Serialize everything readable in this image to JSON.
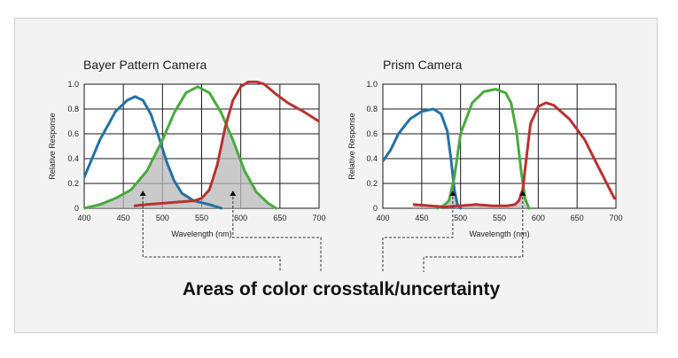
{
  "caption": "Areas of color crosstalk/uncertainty",
  "colors": {
    "blue": "#2471a3",
    "green": "#4aaa3e",
    "red": "#b83232",
    "shade": "#b8b8b8"
  },
  "chart_data": [
    {
      "type": "line",
      "title": "Bayer Pattern Camera",
      "xlabel": "Wavelength (nm)",
      "ylabel": "Relative Response",
      "xlim": [
        400,
        700
      ],
      "ylim": [
        0,
        1.0
      ],
      "x_ticks": [
        "400",
        "450",
        "500",
        "550",
        "600",
        "650",
        "700"
      ],
      "y_ticks": [
        "0",
        "0.2",
        "0.4",
        "0.6",
        "0.8",
        "1.0"
      ],
      "grid": true,
      "series": [
        {
          "color": "blue",
          "x": [
            400,
            420,
            440,
            455,
            465,
            475,
            485,
            495,
            505,
            515,
            525,
            540,
            560,
            575
          ],
          "y": [
            0.25,
            0.55,
            0.78,
            0.87,
            0.9,
            0.87,
            0.76,
            0.58,
            0.38,
            0.22,
            0.12,
            0.06,
            0.03,
            0.0
          ]
        },
        {
          "color": "green",
          "x": [
            400,
            420,
            440,
            460,
            480,
            500,
            515,
            530,
            545,
            560,
            575,
            590,
            605,
            620,
            635,
            645
          ],
          "y": [
            0.0,
            0.03,
            0.08,
            0.15,
            0.3,
            0.55,
            0.77,
            0.93,
            0.98,
            0.93,
            0.77,
            0.55,
            0.3,
            0.13,
            0.04,
            0.0
          ]
        },
        {
          "color": "red",
          "x": [
            465,
            480,
            500,
            520,
            540,
            550,
            560,
            570,
            580,
            590,
            600,
            610,
            620,
            630,
            645,
            660,
            680,
            700
          ],
          "y": [
            0.02,
            0.03,
            0.04,
            0.05,
            0.06,
            0.08,
            0.15,
            0.35,
            0.65,
            0.87,
            0.98,
            1.02,
            1.02,
            1.0,
            0.92,
            0.85,
            0.78,
            0.7
          ]
        }
      ],
      "crosstalk_arrows_x": [
        475,
        590
      ]
    },
    {
      "type": "line",
      "title": "Prism Camera",
      "xlabel": "Wavelength (nm)",
      "ylabel": "Relative Response",
      "xlim": [
        400,
        700
      ],
      "ylim": [
        0,
        1.0
      ],
      "x_ticks": [
        "400",
        "450",
        "500",
        "550",
        "600",
        "650",
        "700"
      ],
      "y_ticks": [
        "0",
        "0.2",
        "0.4",
        "0.6",
        "0.8",
        "1.0"
      ],
      "grid": true,
      "series": [
        {
          "color": "blue",
          "x": [
            400,
            410,
            420,
            435,
            450,
            465,
            475,
            483,
            488,
            492,
            496,
            500
          ],
          "y": [
            0.38,
            0.47,
            0.6,
            0.72,
            0.78,
            0.8,
            0.76,
            0.62,
            0.38,
            0.15,
            0.03,
            0.0
          ]
        },
        {
          "color": "green",
          "x": [
            470,
            478,
            485,
            492,
            500,
            515,
            530,
            545,
            558,
            565,
            572,
            578,
            583,
            588
          ],
          "y": [
            0.0,
            0.02,
            0.06,
            0.25,
            0.6,
            0.85,
            0.94,
            0.96,
            0.93,
            0.85,
            0.62,
            0.3,
            0.08,
            0.0
          ]
        },
        {
          "color": "red",
          "x": [
            440,
            460,
            480,
            500,
            520,
            540,
            560,
            570,
            575,
            580,
            585,
            590,
            600,
            610,
            620,
            640,
            660,
            680,
            698
          ],
          "y": [
            0.03,
            0.02,
            0.01,
            0.02,
            0.03,
            0.02,
            0.02,
            0.03,
            0.06,
            0.15,
            0.42,
            0.68,
            0.82,
            0.85,
            0.83,
            0.72,
            0.55,
            0.3,
            0.08
          ]
        }
      ],
      "crosstalk_arrows_x": [
        490,
        580
      ]
    }
  ]
}
